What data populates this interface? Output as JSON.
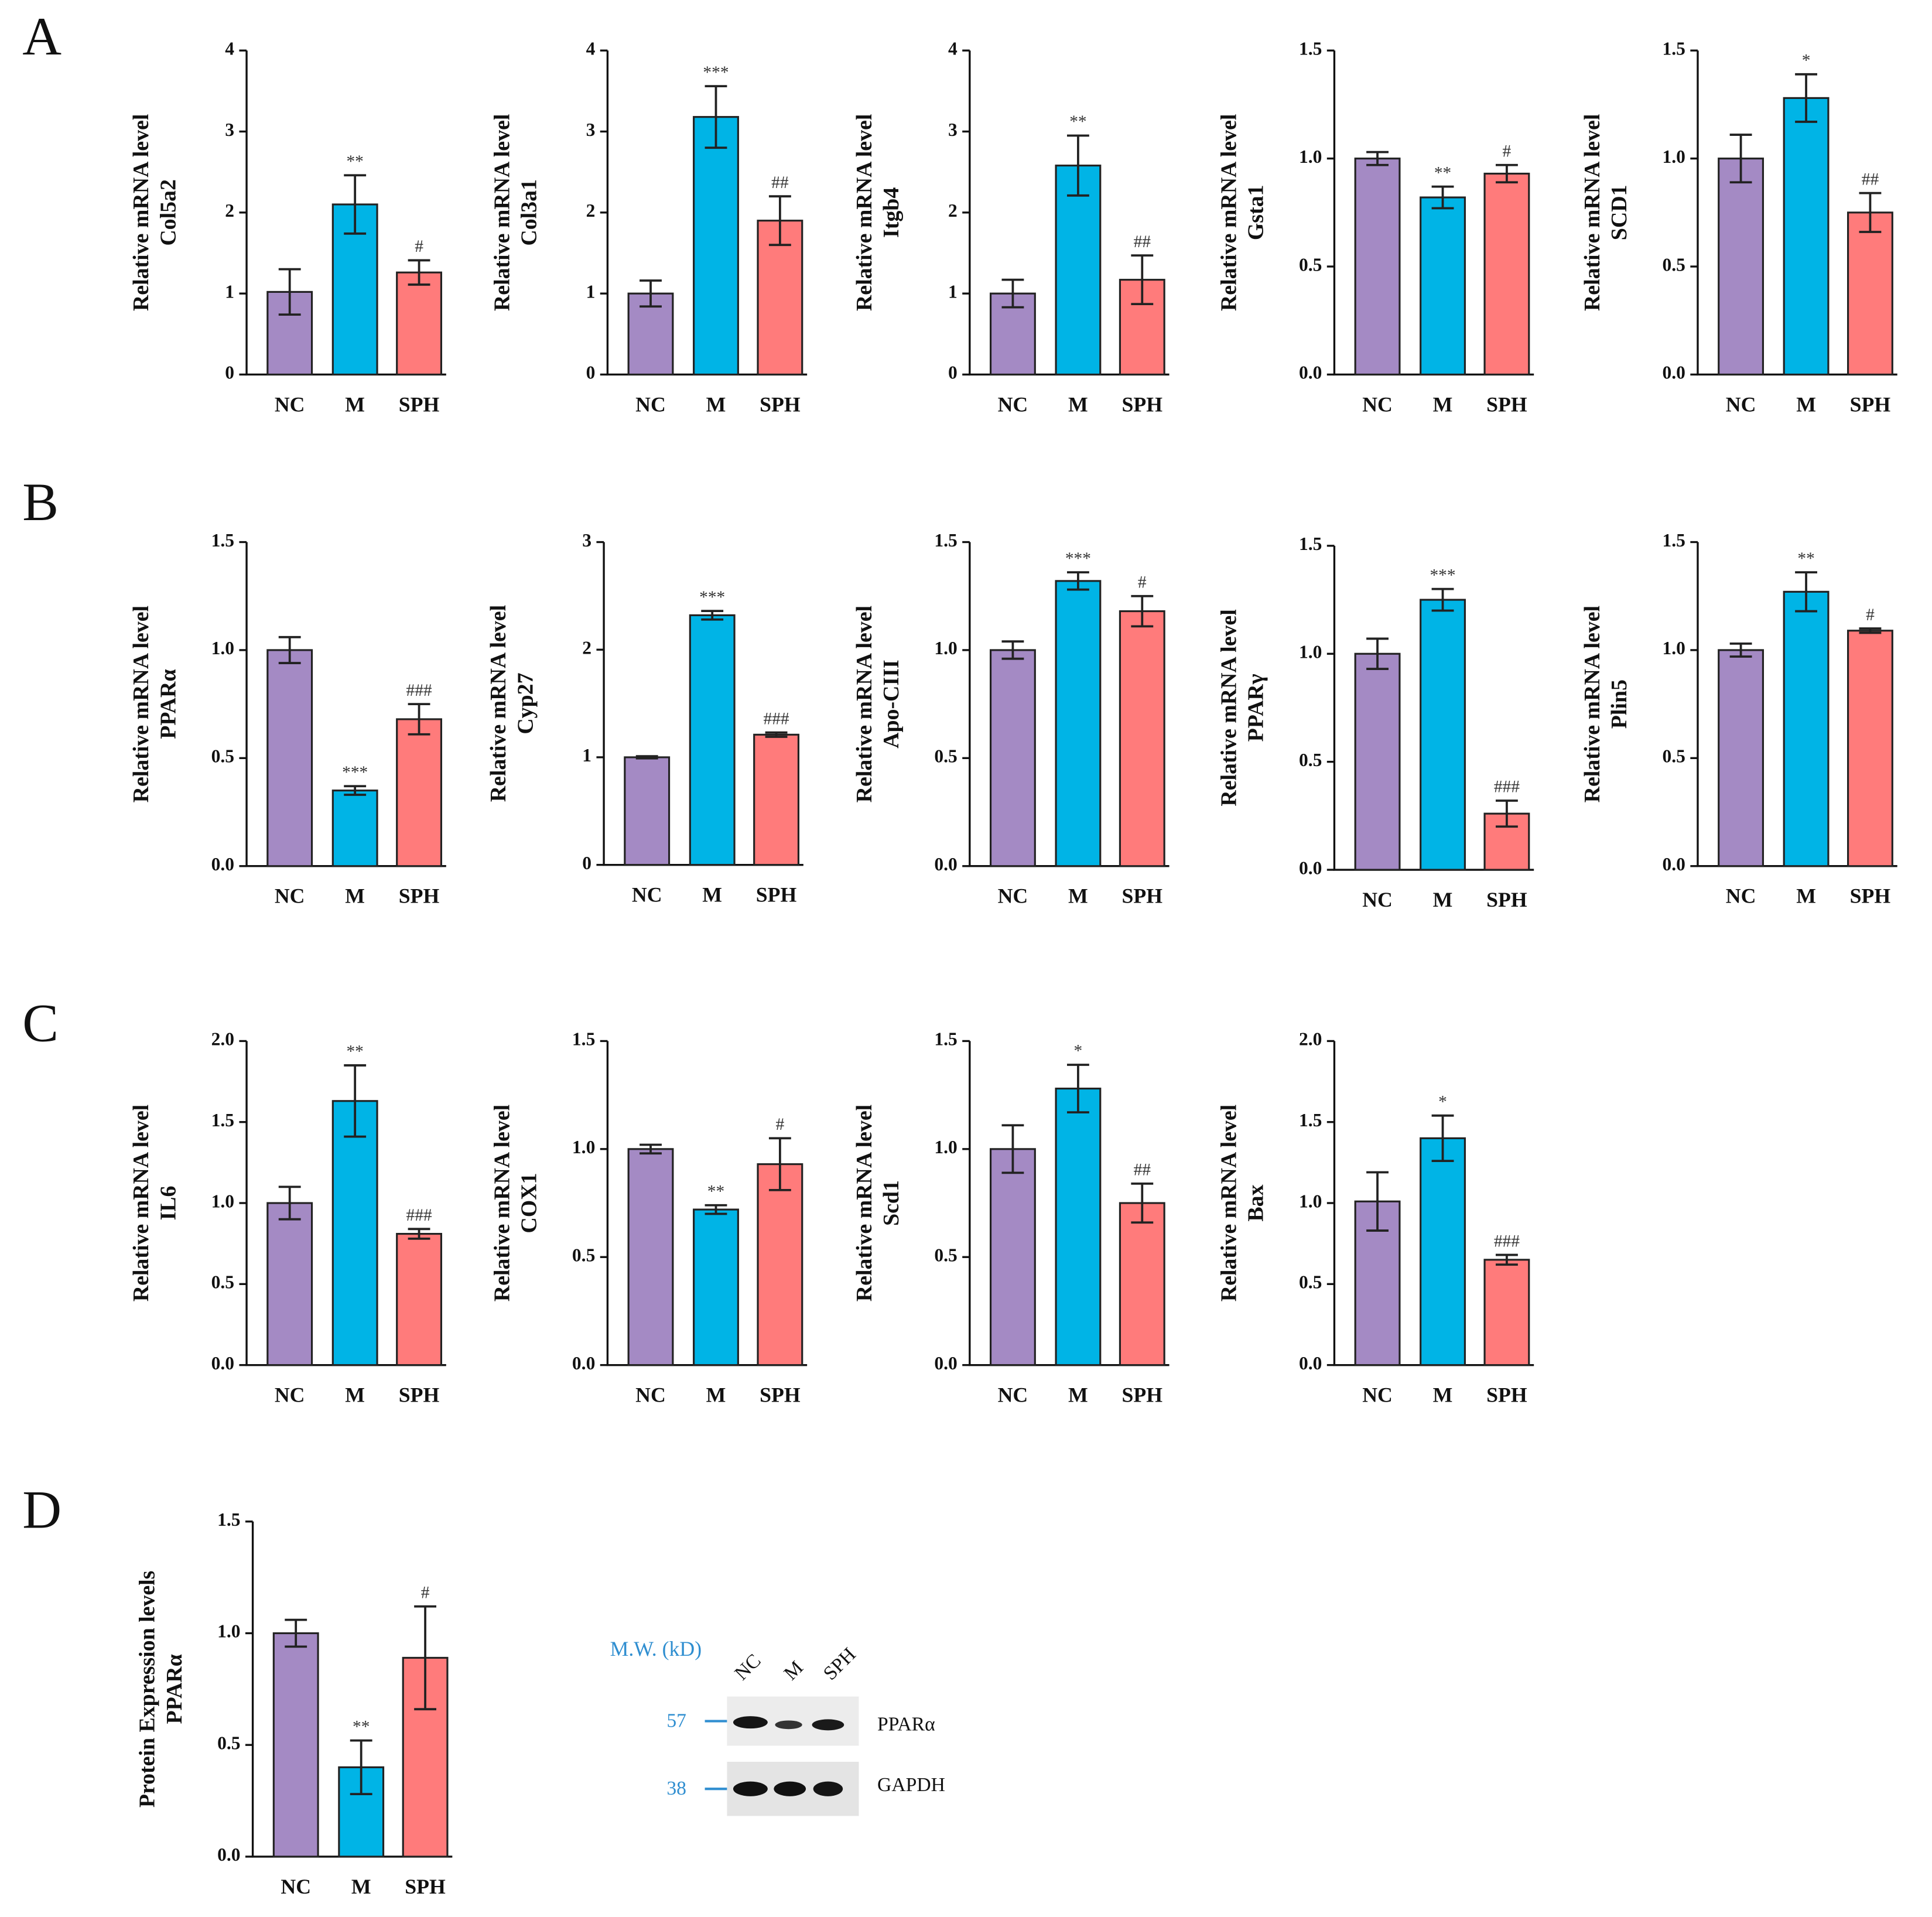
{
  "panels": [
    "A",
    "B",
    "C",
    "D"
  ],
  "blot": {
    "mw_label": "M.W. (kD)",
    "lanes": [
      "NC",
      "M",
      "SPH"
    ],
    "markers": [
      {
        "mw": 57,
        "protein": "PPARα"
      },
      {
        "mw": 38,
        "protein": "GAPDH"
      }
    ]
  },
  "chart_data": [
    {
      "type": "bar",
      "ylabel": [
        "Relative mRNA level",
        "Col5a2"
      ],
      "categories": [
        "NC",
        "M",
        "SPH"
      ],
      "values": [
        1.02,
        2.1,
        1.26
      ],
      "errors": [
        0.28,
        0.36,
        0.15
      ],
      "annotations": [
        null,
        "**",
        "#"
      ],
      "colors": [
        "#a48ac4",
        "#00b4e6",
        "#ff7b7b"
      ],
      "ylim": [
        0,
        4
      ],
      "yticks": [
        0,
        1,
        2,
        3,
        4
      ]
    },
    {
      "type": "bar",
      "ylabel": [
        "Relative mRNA level",
        "Col3a1"
      ],
      "categories": [
        "NC",
        "M",
        "SPH"
      ],
      "values": [
        1.0,
        3.18,
        1.9
      ],
      "errors": [
        0.16,
        0.38,
        0.3
      ],
      "annotations": [
        null,
        "***",
        "##"
      ],
      "colors": [
        "#a48ac4",
        "#00b4e6",
        "#ff7b7b"
      ],
      "ylim": [
        0,
        4
      ],
      "yticks": [
        0,
        1,
        2,
        3,
        4
      ]
    },
    {
      "type": "bar",
      "ylabel": [
        "Relative mRNA level",
        "Itgb4"
      ],
      "categories": [
        "NC",
        "M",
        "SPH"
      ],
      "values": [
        1.0,
        2.58,
        1.17
      ],
      "errors": [
        0.17,
        0.37,
        0.3
      ],
      "annotations": [
        null,
        "**",
        "##"
      ],
      "colors": [
        "#a48ac4",
        "#00b4e6",
        "#ff7b7b"
      ],
      "ylim": [
        0,
        4
      ],
      "yticks": [
        0,
        1,
        2,
        3,
        4
      ]
    },
    {
      "type": "bar",
      "ylabel": [
        "Relative mRNA level",
        "Gsta1"
      ],
      "categories": [
        "NC",
        "M",
        "SPH"
      ],
      "values": [
        1.0,
        0.82,
        0.93
      ],
      "errors": [
        0.03,
        0.05,
        0.04
      ],
      "annotations": [
        null,
        "**",
        "#"
      ],
      "colors": [
        "#a48ac4",
        "#00b4e6",
        "#ff7b7b"
      ],
      "ylim": [
        0,
        1.5
      ],
      "yticks": [
        {
          "value": 0,
          "label": "0.0"
        },
        0.5,
        {
          "value": 1,
          "label": "1.0"
        },
        1.5
      ]
    },
    {
      "type": "bar",
      "ylabel": [
        "Relative mRNA level",
        "SCD1"
      ],
      "categories": [
        "NC",
        "M",
        "SPH"
      ],
      "values": [
        1.0,
        1.28,
        0.75
      ],
      "errors": [
        0.11,
        0.11,
        0.09
      ],
      "annotations": [
        null,
        "*",
        "##"
      ],
      "colors": [
        "#a48ac4",
        "#00b4e6",
        "#ff7b7b"
      ],
      "ylim": [
        0,
        1.5
      ],
      "yticks": [
        {
          "value": 0,
          "label": "0.0"
        },
        0.5,
        {
          "value": 1,
          "label": "1.0"
        },
        1.5
      ]
    },
    {
      "type": "bar",
      "ylabel": [
        "Relative mRNA level",
        "PPARα"
      ],
      "categories": [
        "NC",
        "M",
        "SPH"
      ],
      "values": [
        1.0,
        0.35,
        0.68
      ],
      "errors": [
        0.06,
        0.02,
        0.07
      ],
      "annotations": [
        null,
        "***",
        "###"
      ],
      "colors": [
        "#a48ac4",
        "#00b4e6",
        "#ff7b7b"
      ],
      "ylim": [
        0,
        1.5
      ],
      "yticks": [
        {
          "value": 0,
          "label": "0.0"
        },
        0.5,
        {
          "value": 1,
          "label": "1.0"
        },
        1.5
      ]
    },
    {
      "type": "bar",
      "ylabel": [
        "Relative mRNA level",
        "Cyp27"
      ],
      "categories": [
        "NC",
        "M",
        "SPH"
      ],
      "values": [
        1.0,
        2.32,
        1.21
      ],
      "errors": [
        0.01,
        0.04,
        0.02
      ],
      "annotations": [
        null,
        "***",
        "###"
      ],
      "colors": [
        "#a48ac4",
        "#00b4e6",
        "#ff7b7b"
      ],
      "ylim": [
        0,
        3
      ],
      "yticks": [
        0,
        1,
        2,
        3
      ]
    },
    {
      "type": "bar",
      "ylabel": [
        "Relative mRNA level",
        "Apo-CIII"
      ],
      "categories": [
        "NC",
        "M",
        "SPH"
      ],
      "values": [
        1.0,
        1.32,
        1.18
      ],
      "errors": [
        0.04,
        0.04,
        0.07
      ],
      "annotations": [
        null,
        "***",
        "#"
      ],
      "colors": [
        "#a48ac4",
        "#00b4e6",
        "#ff7b7b"
      ],
      "ylim": [
        0,
        1.5
      ],
      "yticks": [
        {
          "value": 0,
          "label": "0.0"
        },
        0.5,
        {
          "value": 1,
          "label": "1.0"
        },
        1.5
      ]
    },
    {
      "type": "bar",
      "ylabel": [
        "Relative mRNA level",
        "PPARγ"
      ],
      "categories": [
        "NC",
        "M",
        "SPH"
      ],
      "values": [
        1.0,
        1.25,
        0.26
      ],
      "errors": [
        0.07,
        0.05,
        0.06
      ],
      "annotations": [
        null,
        "***",
        "###"
      ],
      "colors": [
        "#a48ac4",
        "#00b4e6",
        "#ff7b7b"
      ],
      "ylim": [
        0,
        1.5
      ],
      "yticks": [
        {
          "value": 0,
          "label": "0.0"
        },
        0.5,
        {
          "value": 1,
          "label": "1.0"
        },
        1.5
      ]
    },
    {
      "type": "bar",
      "ylabel": [
        "Relative mRNA level",
        "Plin5"
      ],
      "categories": [
        "NC",
        "M",
        "SPH"
      ],
      "values": [
        1.0,
        1.27,
        1.09
      ],
      "errors": [
        0.03,
        0.09,
        0.01
      ],
      "annotations": [
        null,
        "**",
        "#"
      ],
      "colors": [
        "#a48ac4",
        "#00b4e6",
        "#ff7b7b"
      ],
      "ylim": [
        0,
        1.5
      ],
      "yticks": [
        {
          "value": 0,
          "label": "0.0"
        },
        0.5,
        {
          "value": 1,
          "label": "1.0"
        },
        1.5
      ]
    },
    {
      "type": "bar",
      "ylabel": [
        "Relative mRNA level",
        "IL6"
      ],
      "categories": [
        "NC",
        "M",
        "SPH"
      ],
      "values": [
        1.0,
        1.63,
        0.81
      ],
      "errors": [
        0.1,
        0.22,
        0.03
      ],
      "annotations": [
        null,
        "**",
        "###"
      ],
      "colors": [
        "#a48ac4",
        "#00b4e6",
        "#ff7b7b"
      ],
      "ylim": [
        0,
        2
      ],
      "yticks": [
        {
          "value": 0,
          "label": "0.0"
        },
        0.5,
        {
          "value": 1,
          "label": "1.0"
        },
        1.5,
        {
          "value": 2,
          "label": "2.0"
        }
      ]
    },
    {
      "type": "bar",
      "ylabel": [
        "Relative mRNA level",
        "COX1"
      ],
      "categories": [
        "NC",
        "M",
        "SPH"
      ],
      "values": [
        1.0,
        0.72,
        0.93
      ],
      "errors": [
        0.02,
        0.02,
        0.12
      ],
      "annotations": [
        null,
        "**",
        "#"
      ],
      "colors": [
        "#a48ac4",
        "#00b4e6",
        "#ff7b7b"
      ],
      "ylim": [
        0,
        1.5
      ],
      "yticks": [
        {
          "value": 0,
          "label": "0.0"
        },
        0.5,
        {
          "value": 1,
          "label": "1.0"
        },
        1.5
      ]
    },
    {
      "type": "bar",
      "ylabel": [
        "Relative mRNA level",
        "Scd1"
      ],
      "categories": [
        "NC",
        "M",
        "SPH"
      ],
      "values": [
        1.0,
        1.28,
        0.75
      ],
      "errors": [
        0.11,
        0.11,
        0.09
      ],
      "annotations": [
        null,
        "*",
        "##"
      ],
      "colors": [
        "#a48ac4",
        "#00b4e6",
        "#ff7b7b"
      ],
      "ylim": [
        0,
        1.5
      ],
      "yticks": [
        {
          "value": 0,
          "label": "0.0"
        },
        0.5,
        {
          "value": 1,
          "label": "1.0"
        },
        1.5
      ]
    },
    {
      "type": "bar",
      "ylabel": [
        "Relative mRNA level",
        "Bax"
      ],
      "categories": [
        "NC",
        "M",
        "SPH"
      ],
      "values": [
        1.01,
        1.4,
        0.65
      ],
      "errors": [
        0.18,
        0.14,
        0.03
      ],
      "annotations": [
        null,
        "*",
        "###"
      ],
      "colors": [
        "#a48ac4",
        "#00b4e6",
        "#ff7b7b"
      ],
      "ylim": [
        0,
        2
      ],
      "yticks": [
        {
          "value": 0,
          "label": "0.0"
        },
        0.5,
        {
          "value": 1,
          "label": "1.0"
        },
        1.5,
        {
          "value": 2,
          "label": "2.0"
        }
      ]
    },
    {
      "type": "bar",
      "ylabel": [
        "Protein Expression levels",
        "PPARα"
      ],
      "categories": [
        "NC",
        "M",
        "SPH"
      ],
      "values": [
        1.0,
        0.4,
        0.89
      ],
      "errors": [
        0.06,
        0.12,
        0.23
      ],
      "annotations": [
        null,
        "**",
        "#"
      ],
      "colors": [
        "#a48ac4",
        "#00b4e6",
        "#ff7b7b"
      ],
      "ylim": [
        0,
        1.5
      ],
      "yticks": [
        {
          "value": 0,
          "label": "0.0"
        },
        0.5,
        {
          "value": 1,
          "label": "1.0"
        },
        1.5
      ]
    }
  ]
}
